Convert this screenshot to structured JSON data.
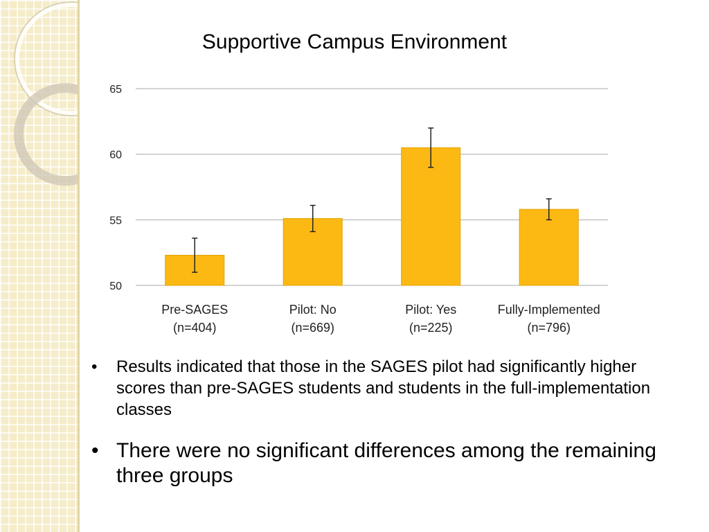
{
  "slide": {
    "title": "Supportive Campus Environment",
    "bullets": [
      "Results indicated that those in the SAGES pilot had significantly higher scores than pre-SAGES students and students in the full-implementation classes",
      "There were no significant differences among the remaining three groups"
    ],
    "bullet_symbol": "•"
  },
  "chart_data": {
    "type": "bar",
    "title": "Supportive Campus Environment",
    "xlabel": "",
    "ylabel": "",
    "categories": [
      [
        "Pre-SAGES",
        "(n=404)"
      ],
      [
        "Pilot: No",
        "(n=669)"
      ],
      [
        "Pilot: Yes",
        "(n=225)"
      ],
      [
        "Fully-Implemented",
        "(n=796)"
      ]
    ],
    "values": [
      52.3,
      55.1,
      60.5,
      55.8
    ],
    "error_low": [
      51.0,
      54.1,
      59.0,
      55.0
    ],
    "error_high": [
      53.6,
      56.1,
      62.0,
      56.6
    ],
    "ylim": [
      50,
      65
    ],
    "yticks": [
      50,
      55,
      60,
      65
    ],
    "grid": true,
    "colors": {
      "bar": "#FDB913",
      "bar_stroke": "#E0A000",
      "grid": "#a9a9a9",
      "error": "#222222"
    }
  }
}
